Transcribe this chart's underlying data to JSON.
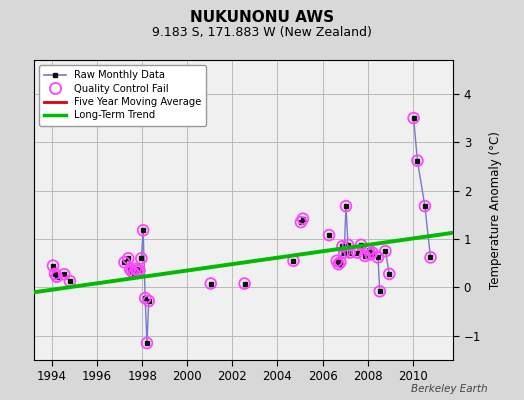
{
  "title": "NUKUNONU AWS",
  "subtitle": "9.183 S, 171.883 W (New Zealand)",
  "ylabel": "Temperature Anomaly (°C)",
  "credit": "Berkeley Earth",
  "xlim": [
    1993.2,
    2011.8
  ],
  "ylim": [
    -1.5,
    4.7
  ],
  "yticks": [
    -1,
    0,
    1,
    2,
    3,
    4
  ],
  "xticks": [
    1994,
    1996,
    1998,
    2000,
    2002,
    2004,
    2006,
    2008,
    2010
  ],
  "bg_color": "#d8d8d8",
  "plot_bg_color": "#f0f0f0",
  "segments": [
    {
      "x": [
        1994.04,
        1994.13,
        1994.21,
        1994.54,
        1994.79
      ],
      "y": [
        0.45,
        0.28,
        0.22,
        0.27,
        0.13
      ]
    },
    {
      "x": [
        1997.21,
        1997.38,
        1997.46,
        1997.54,
        1997.63,
        1997.71,
        1997.79,
        1997.88
      ],
      "y": [
        0.52,
        0.6,
        0.38,
        0.33,
        0.3,
        0.38,
        0.35,
        0.35
      ]
    },
    {
      "x": [
        1997.96,
        1998.04,
        1998.13,
        1998.21,
        1998.29
      ],
      "y": [
        0.6,
        1.18,
        -0.22,
        -1.15,
        -0.28
      ]
    },
    {
      "x": [
        2001.04
      ],
      "y": [
        0.08
      ]
    },
    {
      "x": [
        2002.54
      ],
      "y": [
        0.08
      ]
    },
    {
      "x": [
        2004.71
      ],
      "y": [
        0.55
      ]
    },
    {
      "x": [
        2005.04,
        2005.13
      ],
      "y": [
        1.35,
        1.42
      ]
    },
    {
      "x": [
        2006.29
      ],
      "y": [
        1.08
      ]
    },
    {
      "x": [
        2006.63
      ],
      "y": [
        0.55
      ]
    },
    {
      "x": [
        2006.71,
        2006.79,
        2006.88,
        2006.96,
        2007.04,
        2007.13,
        2007.21
      ],
      "y": [
        0.48,
        0.52,
        0.85,
        0.72,
        1.68,
        0.88,
        0.72
      ]
    },
    {
      "x": [
        2007.54,
        2007.71,
        2007.88
      ],
      "y": [
        0.72,
        0.88,
        0.65
      ]
    },
    {
      "x": [
        2008.04,
        2008.13,
        2008.21
      ],
      "y": [
        0.78,
        0.68,
        0.72
      ]
    },
    {
      "x": [
        2008.46,
        2008.54
      ],
      "y": [
        0.62,
        -0.08
      ]
    },
    {
      "x": [
        2008.79,
        2008.96
      ],
      "y": [
        0.75,
        0.28
      ]
    },
    {
      "x": [
        2010.04,
        2010.21,
        2010.54,
        2010.79
      ],
      "y": [
        3.5,
        2.62,
        1.68,
        0.62
      ]
    }
  ],
  "qc_x": [
    1994.04,
    1994.13,
    1994.21,
    1994.54,
    1994.79,
    1997.21,
    1997.38,
    1997.46,
    1997.54,
    1997.63,
    1997.71,
    1997.79,
    1997.88,
    1997.96,
    1998.04,
    1998.13,
    1998.21,
    1998.29,
    2001.04,
    2002.54,
    2004.71,
    2005.04,
    2005.13,
    2006.29,
    2006.63,
    2006.71,
    2006.79,
    2006.88,
    2006.96,
    2007.04,
    2007.13,
    2007.21,
    2007.54,
    2007.71,
    2007.88,
    2008.04,
    2008.13,
    2008.21,
    2008.46,
    2008.54,
    2008.79,
    2008.96,
    2010.04,
    2010.21,
    2010.54,
    2010.79
  ],
  "qc_y": [
    0.45,
    0.28,
    0.22,
    0.27,
    0.13,
    0.52,
    0.6,
    0.38,
    0.33,
    0.3,
    0.38,
    0.35,
    0.35,
    0.6,
    1.18,
    -0.22,
    -1.15,
    -0.28,
    0.08,
    0.08,
    0.55,
    1.35,
    1.42,
    1.08,
    0.55,
    0.48,
    0.52,
    0.85,
    0.72,
    1.68,
    0.88,
    0.72,
    0.72,
    0.88,
    0.65,
    0.78,
    0.68,
    0.72,
    0.62,
    -0.08,
    0.75,
    0.28,
    3.5,
    2.62,
    1.68,
    0.62
  ],
  "trend_x": [
    1993.2,
    2011.8
  ],
  "trend_y": [
    -0.1,
    1.13
  ],
  "line_color": "#7777cc",
  "marker_color": "#111111",
  "qc_color": "#ff44ff",
  "trend_color": "#00bb00",
  "moving_avg_color": "#dd0000",
  "grid_color": "#bbbbbb"
}
